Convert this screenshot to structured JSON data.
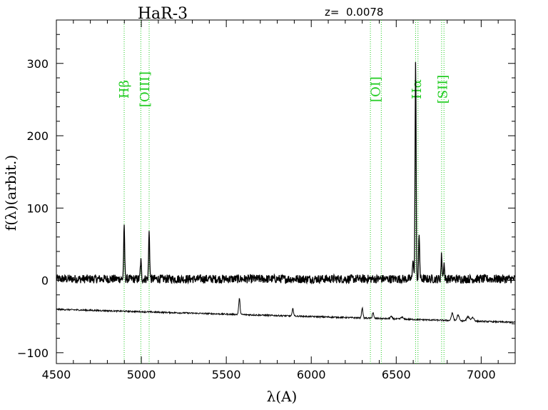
{
  "chart_data": {
    "type": "line",
    "title": "HaR-3",
    "redshift_label": "z=  0.0078",
    "xlabel": "λ(A)",
    "ylabel": "f(λ)(arbit.)",
    "xlim": [
      4500,
      7200
    ],
    "ylim": [
      -115,
      360
    ],
    "xticks": [
      4500,
      5000,
      5500,
      6000,
      6500,
      7000
    ],
    "yticks": [
      -100,
      0,
      100,
      200,
      300
    ],
    "grid": false,
    "colors": {
      "spectrum": "#000000",
      "lines": "#22cc22"
    },
    "line_markers": [
      {
        "label": "Hβ",
        "x": [
          4899
        ]
      },
      {
        "label": "[OIII]",
        "x": [
          4997,
          5046
        ]
      },
      {
        "label": "[OI]",
        "x": [
          6348,
          6412
        ]
      },
      {
        "label": "Hα",
        "x": [
          6614,
          6628
        ]
      },
      {
        "label": "[SII]",
        "x": [
          6767,
          6781
        ]
      }
    ],
    "series": [
      {
        "role": "object spectrum",
        "continuum": 2,
        "noise": 6,
        "features": [
          {
            "x": 4899,
            "peak": 70,
            "width": 3
          },
          {
            "x": 4997,
            "peak": 25,
            "width": 3
          },
          {
            "x": 5046,
            "peak": 65,
            "width": 3
          },
          {
            "x": 6599,
            "peak": 30,
            "width": 3
          },
          {
            "x": 6614,
            "peak": 300,
            "width": 3
          },
          {
            "x": 6635,
            "peak": 60,
            "width": 3
          },
          {
            "x": 6767,
            "peak": 33,
            "width": 3
          },
          {
            "x": 6781,
            "peak": 22,
            "width": 3
          }
        ]
      },
      {
        "role": "sky spectrum",
        "continuum_start": -40,
        "continuum_end": -58,
        "noise": 1,
        "features": [
          {
            "x": 5577,
            "peak": 22,
            "width": 4
          },
          {
            "x": 5892,
            "peak": 10,
            "width": 4
          },
          {
            "x": 6300,
            "peak": 14,
            "width": 4
          },
          {
            "x": 6363,
            "peak": 8,
            "width": 4
          },
          {
            "x": 6470,
            "peak": 3,
            "width": 6
          },
          {
            "x": 6534,
            "peak": 3,
            "width": 6
          },
          {
            "x": 6830,
            "peak": 10,
            "width": 6
          },
          {
            "x": 6864,
            "peak": 8,
            "width": 6
          },
          {
            "x": 6923,
            "peak": 6,
            "width": 8
          },
          {
            "x": 6950,
            "peak": 5,
            "width": 8
          }
        ]
      }
    ]
  }
}
